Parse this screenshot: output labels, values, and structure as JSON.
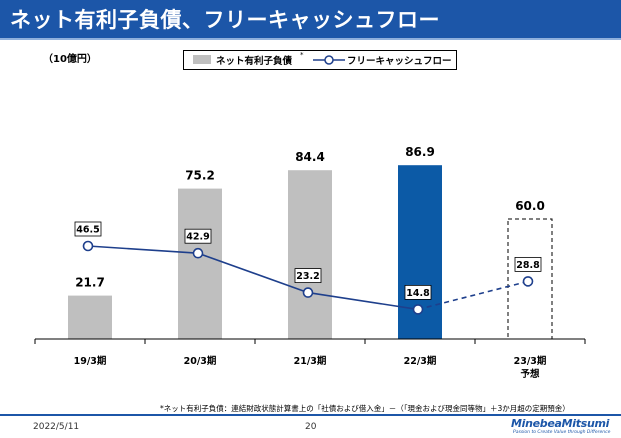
{
  "header": {
    "title": "ネット有利子負債、フリーキャッシュフロー"
  },
  "colors": {
    "title_bg": "#1c56a8",
    "bar_gray": "#bfbfbf",
    "bar_highlight": "#0c5aa6",
    "line": "#1e3f8c"
  },
  "chart_data": {
    "type": "bar+line",
    "unit": "（10億円）",
    "categories": [
      "19/3期",
      "20/3期",
      "21/3期",
      "22/3期",
      "23/3期"
    ],
    "category_sublabels": [
      "",
      "",
      "",
      "",
      "予想"
    ],
    "series": [
      {
        "name": "ネット有利子負債",
        "legend_marker": "*",
        "type": "bar",
        "values": [
          21.7,
          75.2,
          84.4,
          86.9,
          60.0
        ],
        "labels": [
          "21.7",
          "75.2",
          "84.4",
          "86.9",
          "60.0"
        ],
        "styles": [
          "actual",
          "actual",
          "actual",
          "highlight",
          "forecast"
        ]
      },
      {
        "name": "フリーキャッシュフロー",
        "type": "line",
        "values": [
          46.5,
          42.9,
          23.2,
          14.8,
          28.8
        ],
        "labels": [
          "46.5",
          "42.9",
          "23.2",
          "14.8",
          "28.8"
        ],
        "forecast_from_index": 4
      }
    ],
    "ylim": [
      0,
      100
    ],
    "grid": false,
    "legend": "top-center"
  },
  "footnote": "*ネット有利子負債：連結財政状態計算書上の「社債および借入金」－（「現金および現金同等物」＋3か月超の定期預金）",
  "footer": {
    "date": "2022/5/11",
    "page": "20",
    "logo_name": "MinebeaMitsumi",
    "logo_tagline": "Passion to Create Value through Difference"
  }
}
